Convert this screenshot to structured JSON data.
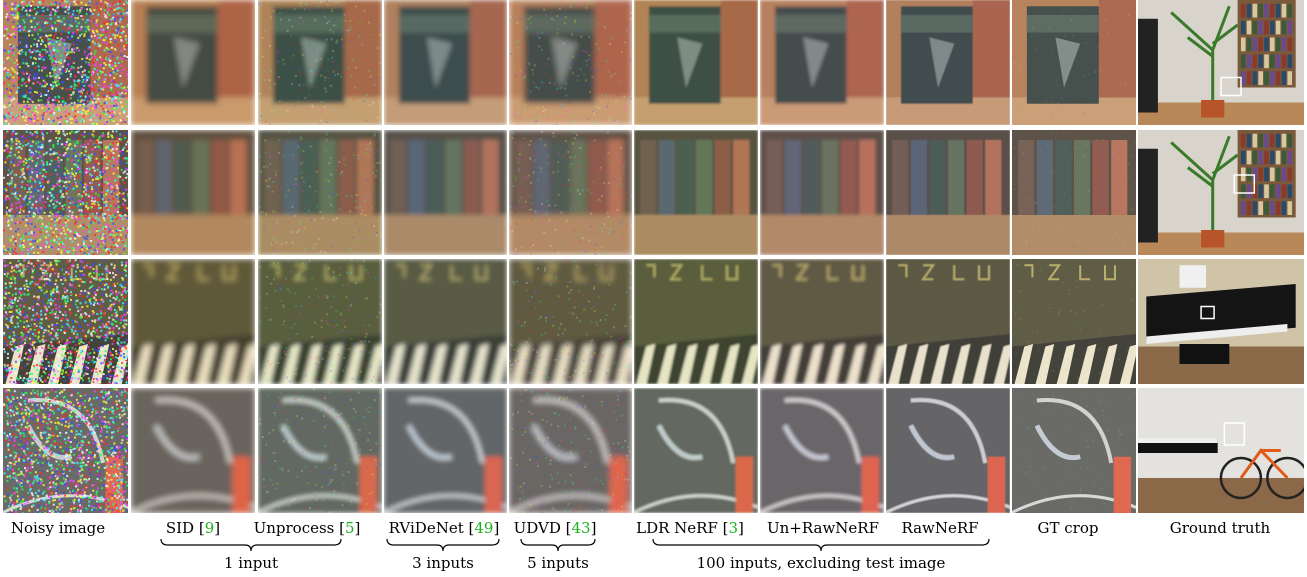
{
  "columns": [
    {
      "label": "Noisy image",
      "ref": ""
    },
    {
      "label": "SID [",
      "ref": "9",
      "tail": "]"
    },
    {
      "label": "Unprocess [",
      "ref": "5",
      "tail": "]"
    },
    {
      "label": "RViDeNet [",
      "ref": "49",
      "tail": "]"
    },
    {
      "label": "UDVD [",
      "ref": "43",
      "tail": "]"
    },
    {
      "label": "LDR NeRF [",
      "ref": "3",
      "tail": "]"
    },
    {
      "label": "Un+RawNeRF",
      "ref": ""
    },
    {
      "label": "RawNeRF",
      "ref": ""
    },
    {
      "label": "GT crop",
      "ref": ""
    },
    {
      "label": "Ground truth",
      "ref": ""
    }
  ],
  "groups": [
    {
      "label": "1 input"
    },
    {
      "label": "3 inputs"
    },
    {
      "label": "5 inputs"
    },
    {
      "label": "100 inputs, excluding test image"
    }
  ],
  "rows": [
    {
      "scene": "bookshelf-book",
      "tone": "#6f5a3c"
    },
    {
      "scene": "bookshelf-books",
      "tone": "#5a4a36"
    },
    {
      "scene": "piano-keys",
      "tone": "#4b4226"
    },
    {
      "scene": "bicycle",
      "tone": "#4a4a44"
    }
  ]
}
